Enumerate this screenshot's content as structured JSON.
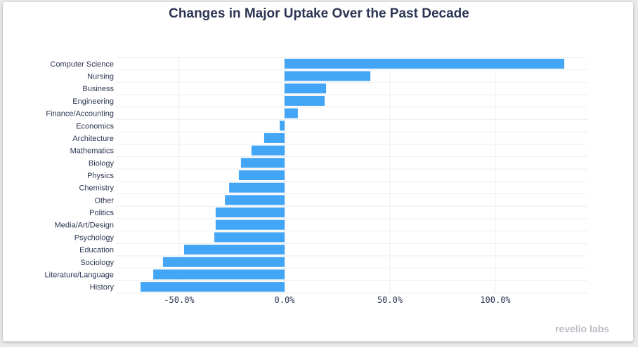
{
  "chart_data": {
    "type": "bar",
    "orientation": "horizontal",
    "title": "Changes in Major Uptake Over the Past Decade",
    "xlabel": "",
    "ylabel": "",
    "color": "#42a5f5",
    "grid": true,
    "xlim": [
      -80,
      143
    ],
    "xticks": [
      -50,
      0,
      50,
      100
    ],
    "xtick_labels": [
      "-50.0%",
      "0.0%",
      "50.0%",
      "100.0%"
    ],
    "categories": [
      "Computer Science",
      "Nursing",
      "Business",
      "Engineering",
      "Finance/Accounting",
      "Economics",
      "Architecture",
      "Mathematics",
      "Biology",
      "Physics",
      "Chemistry",
      "Other",
      "Politics",
      "Media/Art/Design",
      "Psychology",
      "Education",
      "Sociology",
      "Literature/Language",
      "History"
    ],
    "values": [
      132.7,
      40.7,
      19.7,
      19.0,
      6.3,
      -2.3,
      -9.7,
      -15.7,
      -20.7,
      -21.7,
      -26.3,
      -28.3,
      -32.7,
      -32.7,
      -33.3,
      -47.7,
      -57.7,
      -62.3,
      -68.3
    ]
  },
  "branding": {
    "logo": "revelio labs"
  }
}
